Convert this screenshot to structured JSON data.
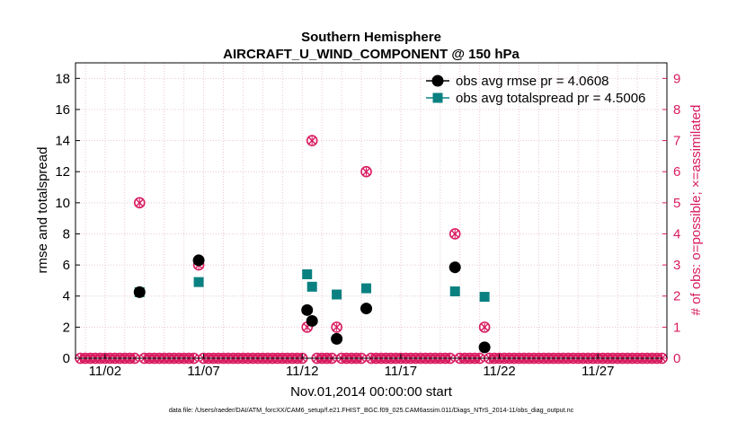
{
  "chart_data": {
    "type": "scatter",
    "title": "Southern Hemisphere",
    "subtitle": "AIRCRAFT_U_WIND_COMPONENT @ 150 hPa",
    "xlabel": "Nov.01,2014 00:00:00 start",
    "ylabel_left": "rmse and totalspread",
    "ylabel_right": "# of obs: o=possible; ×=assimilated",
    "footnote": "data file: /Users/raeder/DAI/ATM_forcXX/CAM6_setup/f.e21.FHIST_BGC.f09_025.CAM6assim.011/Diags_NTrS_2014-11/obs_diag_output.nc",
    "xlim": [
      0.5,
      30.5
    ],
    "ylim_left": [
      0,
      19
    ],
    "ylim_right": [
      0,
      9.5
    ],
    "x_ticks": [
      {
        "x": 2,
        "label": "11/02"
      },
      {
        "x": 7,
        "label": "11/07"
      },
      {
        "x": 12,
        "label": "11/12"
      },
      {
        "x": 17,
        "label": "11/17"
      },
      {
        "x": 22,
        "label": "11/22"
      },
      {
        "x": 27,
        "label": "11/27"
      }
    ],
    "y_ticks_left": [
      0,
      2,
      4,
      6,
      8,
      10,
      12,
      14,
      16,
      18
    ],
    "y_ticks_right": [
      0,
      1,
      2,
      3,
      4,
      5,
      6,
      7,
      8,
      9
    ],
    "grid": true,
    "legend_position": "top-right",
    "colors": {
      "rmse": "#000000",
      "spread": "#0a8080",
      "obs": "#d81b60",
      "grid": "#e8c8d0",
      "axis": "#000000"
    },
    "series": [
      {
        "name": "obs avg rmse pr = 4.0608",
        "axis": "left",
        "marker": "circle",
        "x": [
          3.75,
          6.75,
          12.25,
          12.5,
          13.75,
          15.25,
          19.75,
          21.25
        ],
        "y": [
          4.25,
          6.3,
          3.1,
          2.4,
          1.25,
          3.2,
          5.85,
          0.7
        ]
      },
      {
        "name": "obs avg totalspread pr = 4.5006",
        "axis": "left",
        "marker": "square",
        "x": [
          3.75,
          6.75,
          12.25,
          12.5,
          13.75,
          15.25,
          19.75,
          21.25
        ],
        "y": [
          4.25,
          4.9,
          5.4,
          4.6,
          4.1,
          4.5,
          4.3,
          3.95
        ]
      },
      {
        "name": "obs possible",
        "axis": "right",
        "marker": "circle-open",
        "x": [
          3.75,
          6.75,
          12.25,
          12.5,
          13.75,
          15.25,
          19.75,
          21.25
        ],
        "y": [
          5,
          3,
          1,
          7,
          1,
          6,
          4,
          1
        ]
      },
      {
        "name": "obs assimilated",
        "axis": "right",
        "marker": "cross",
        "x": [
          3.75,
          6.75,
          12.25,
          12.5,
          13.75,
          15.25,
          19.75,
          21.25
        ],
        "y": [
          5,
          3,
          1,
          7,
          1,
          6,
          4,
          1
        ]
      }
    ],
    "zero_obs_marker_step_days": 0.25
  }
}
